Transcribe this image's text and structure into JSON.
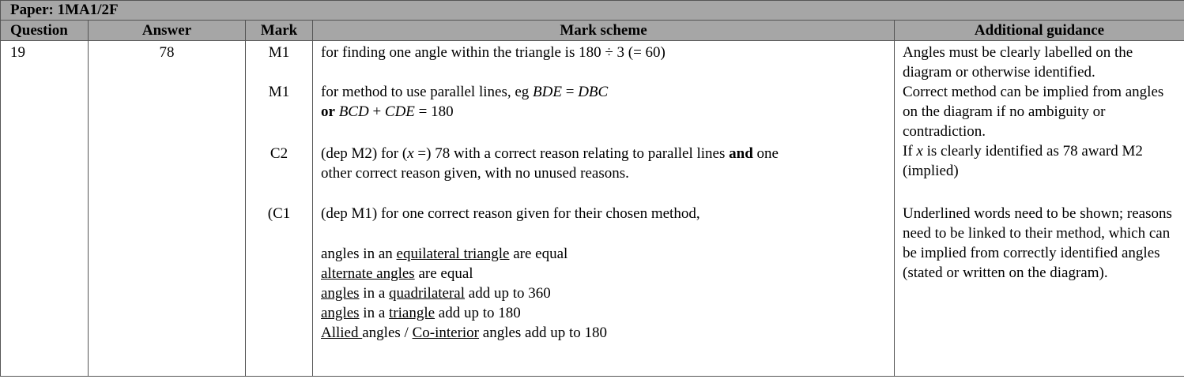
{
  "paper": "Paper: 1MA1/2F",
  "headers": {
    "question": "Question",
    "answer": "Answer",
    "mark": "Mark",
    "scheme": "Mark scheme",
    "guidance": "Additional guidance"
  },
  "row": {
    "question": "19",
    "answer": "78",
    "marks": [
      "M1",
      "M1",
      "C2",
      "(C1"
    ],
    "scheme": {
      "m1a": "for finding one angle within the triangle is 180 ÷ 3 (= 60)",
      "m1b_pre": "for method to use parallel lines, eg ",
      "m1b_bde": "BDE",
      "m1b_eq": " = ",
      "m1b_dbc": "DBC",
      "m1b_or": "or",
      "m1b_bcd": "BCD",
      "m1b_plus": " + ",
      "m1b_cde": "CDE",
      "m1b_end": " = 180",
      "c2_pre": "(dep M2) for (",
      "c2_x": "x",
      "c2_mid": " =) 78 with a correct reason relating to parallel lines ",
      "c2_and": "and",
      "c2_post": " one",
      "c2_line2": "other correct reason given, with no unused reasons.",
      "c1": "(dep M1) for one correct reason given for their chosen method,",
      "r1_pre": "angles in an ",
      "r1_u": "equilateral triangle",
      "r1_post": " are equal",
      "r2_u": "alternate angles",
      "r2_post": " are equal",
      "r3_u1": "angles",
      "r3_mid": " in a ",
      "r3_u2": "quadrilateral",
      "r3_post": " add up to 360",
      "r4_u1": "angles",
      "r4_mid": " in a ",
      "r4_u2": "triangle",
      "r4_post": " add up to 180",
      "r5_u1": "Allied ",
      "r5_mid": "angles / ",
      "r5_u2": "Co-interior",
      "r5_post": " angles add up to 180"
    },
    "guidance": {
      "g1": "Angles must be clearly labelled on the diagram or otherwise identified.",
      "g2": "Correct method can be implied from angles on the diagram if no ambiguity or contradiction.",
      "g3_pre": "If ",
      "g3_x": "x",
      "g3_post": " is clearly identified as 78 award M2 (implied)",
      "g4": "Underlined words need to be shown; reasons need to be linked to their method, which can be implied from correctly identified angles (stated or written on the diagram)."
    }
  }
}
